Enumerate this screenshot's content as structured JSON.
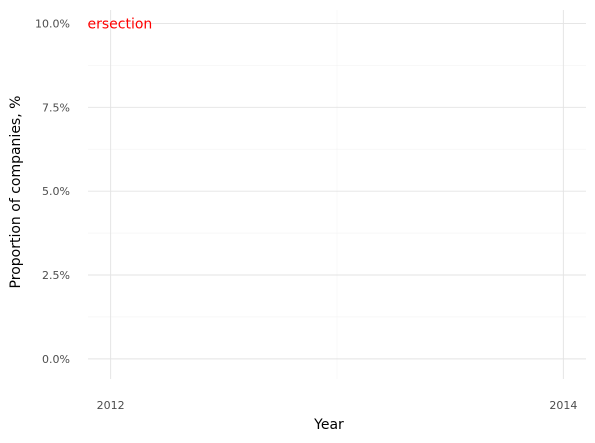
{
  "chart_data": {
    "type": "line",
    "xlabel": "Year",
    "ylabel": "Proportion of companies, %",
    "xlim": [
      2011.9,
      2014.1
    ],
    "ylim": [
      -0.006,
      0.104
    ],
    "x_ticks": [
      {
        "value": 2012,
        "label": "2012"
      },
      {
        "value": 2014,
        "label": "2014"
      }
    ],
    "x_minor": [
      2013
    ],
    "y_ticks": [
      {
        "value": 0.0,
        "label": "0.0%"
      },
      {
        "value": 0.025,
        "label": "2.5%"
      },
      {
        "value": 0.05,
        "label": "5.0%"
      },
      {
        "value": 0.075,
        "label": "7.5%"
      },
      {
        "value": 0.1,
        "label": "10.0%"
      }
    ],
    "y_minor": [
      0.0125,
      0.0375,
      0.0625,
      0.0875
    ],
    "grid": true,
    "series": [],
    "annotations": [
      {
        "text": "Intersection",
        "x": 2012,
        "y": 0.1,
        "color": "#ff0000"
      }
    ]
  }
}
